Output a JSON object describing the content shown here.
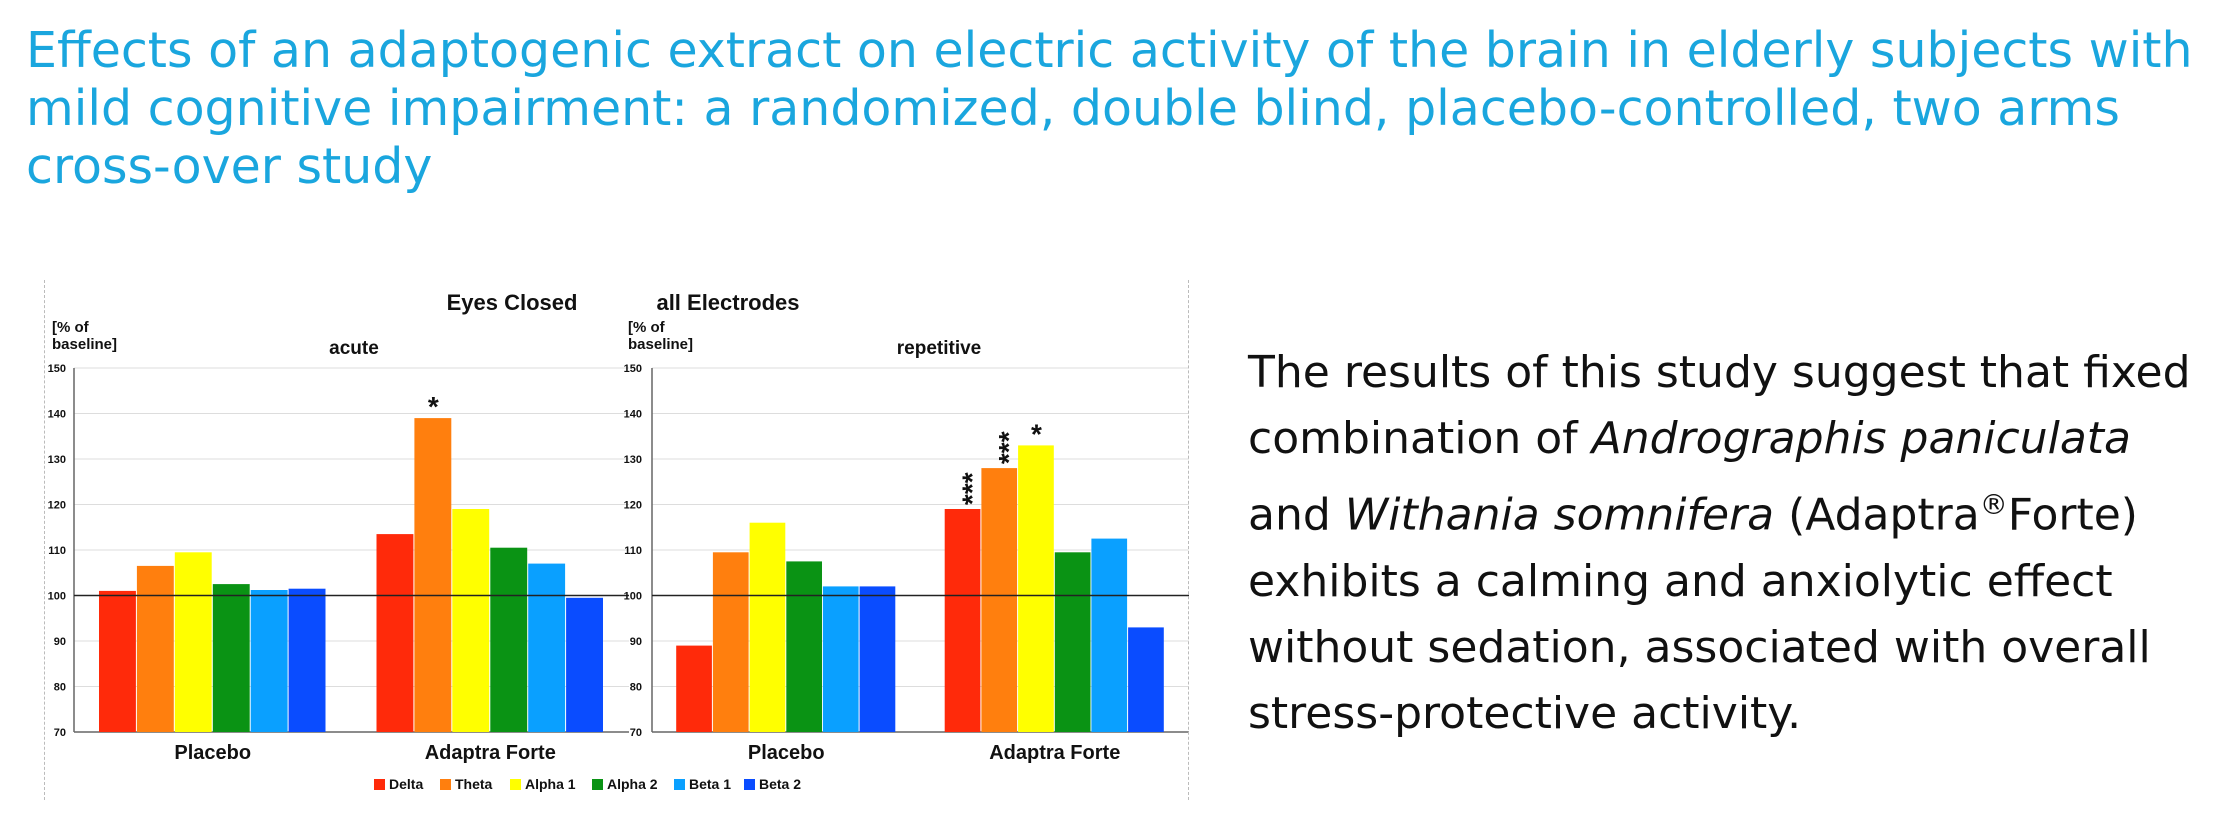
{
  "slide": {
    "title": "Effects of an adaptogenic extract on electric activity of the brain in elderly subjects with mild cognitive impairment: a randomized, double blind, placebo-controlled, two arms cross-over study"
  },
  "conclusion": {
    "part1": "The results of this study suggest that fixed combination of ",
    "species1": "Andrographis paniculata",
    "part2": " and ",
    "species2": "Withania somnifera",
    "part3": " (Adaptra",
    "registered": "®",
    "part4": "Forte) exhibits a calming and anxiolytic effect without sedation, associated with overall stress-protective activity."
  },
  "colors": {
    "Delta": "#ff2a0a",
    "Theta": "#ff7f0e",
    "Alpha 1": "#ffff00",
    "Alpha 2": "#0a9314",
    "Beta 1": "#0aa0ff",
    "Beta 2": "#0a4cff"
  },
  "chart_header": {
    "left": "Eyes Closed",
    "right": "all Electrodes"
  },
  "chart_data": [
    {
      "type": "bar",
      "subtitle": "acute",
      "ylabel": "[% of baseline]",
      "ylim": [
        70,
        150
      ],
      "yticks": [
        70,
        80,
        90,
        100,
        110,
        120,
        130,
        140,
        150
      ],
      "reference_line": 100,
      "categories": [
        "Placebo",
        "Adaptra Forte"
      ],
      "series": [
        {
          "name": "Delta",
          "values": [
            101,
            113.5
          ]
        },
        {
          "name": "Theta",
          "values": [
            106.5,
            139
          ]
        },
        {
          "name": "Alpha 1",
          "values": [
            109.5,
            119
          ]
        },
        {
          "name": "Alpha 2",
          "values": [
            102.5,
            110.5
          ]
        },
        {
          "name": "Beta 1",
          "values": [
            101.2,
            107
          ]
        },
        {
          "name": "Beta 2",
          "values": [
            101.5,
            99.5
          ]
        }
      ],
      "annotations": [
        {
          "series": "Theta",
          "category": "Adaptra Forte",
          "text": "*"
        }
      ]
    },
    {
      "type": "bar",
      "subtitle": "repetitive",
      "ylabel": "[% of baseline]",
      "ylim": [
        70,
        150
      ],
      "yticks": [
        70,
        80,
        90,
        100,
        110,
        120,
        130,
        140,
        150
      ],
      "reference_line": 100,
      "categories": [
        "Placebo",
        "Adaptra Forte"
      ],
      "series": [
        {
          "name": "Delta",
          "values": [
            89,
            119
          ]
        },
        {
          "name": "Theta",
          "values": [
            109.5,
            128
          ]
        },
        {
          "name": "Alpha 1",
          "values": [
            116,
            133
          ]
        },
        {
          "name": "Alpha 2",
          "values": [
            107.5,
            109.5
          ]
        },
        {
          "name": "Beta 1",
          "values": [
            102,
            112.5
          ]
        },
        {
          "name": "Beta 2",
          "values": [
            102,
            93
          ]
        }
      ],
      "annotations": [
        {
          "series": "Delta",
          "category": "Adaptra Forte",
          "text": "***"
        },
        {
          "series": "Theta",
          "category": "Adaptra Forte",
          "text": "***"
        },
        {
          "series": "Alpha 1",
          "category": "Adaptra Forte",
          "text": "*"
        }
      ]
    }
  ]
}
